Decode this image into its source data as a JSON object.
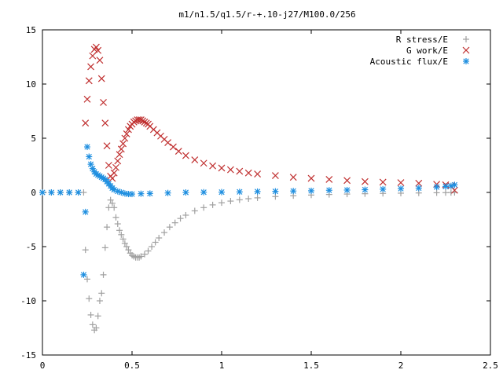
{
  "chart_data": {
    "type": "scatter",
    "title": "m1/n1.5/q1.5/r-+.10-j27/M100.0/256",
    "xlabel": "",
    "ylabel": "",
    "xlim": [
      0,
      2.5
    ],
    "ylim": [
      -15,
      15
    ],
    "x_ticks": [
      0,
      0.5,
      1,
      1.5,
      2,
      2.5
    ],
    "x_tick_labels": [
      "0",
      "0.5",
      "1",
      "1.5",
      "2",
      "2.5"
    ],
    "y_ticks": [
      -15,
      -10,
      -5,
      0,
      5,
      10,
      15
    ],
    "y_tick_labels": [
      "-15",
      "-10",
      "-5",
      "0",
      "5",
      "10",
      "15"
    ],
    "grid": false,
    "legend_position": "top-right",
    "series": [
      {
        "name": "R stress/E",
        "marker": "plus",
        "color": "#a0a0a0",
        "x": [
          0.0,
          0.05,
          0.1,
          0.15,
          0.2,
          0.23,
          0.24,
          0.25,
          0.26,
          0.27,
          0.28,
          0.29,
          0.3,
          0.31,
          0.32,
          0.33,
          0.34,
          0.35,
          0.36,
          0.37,
          0.38,
          0.39,
          0.4,
          0.41,
          0.42,
          0.43,
          0.44,
          0.45,
          0.46,
          0.47,
          0.48,
          0.49,
          0.5,
          0.51,
          0.52,
          0.53,
          0.54,
          0.55,
          0.57,
          0.59,
          0.61,
          0.63,
          0.65,
          0.68,
          0.71,
          0.74,
          0.77,
          0.8,
          0.85,
          0.9,
          0.95,
          1.0,
          1.05,
          1.1,
          1.15,
          1.2,
          1.3,
          1.4,
          1.5,
          1.6,
          1.7,
          1.8,
          1.9,
          2.0,
          2.1,
          2.2,
          2.25,
          2.28,
          2.3
        ],
        "y": [
          0.0,
          0.0,
          0.0,
          0.0,
          0.0,
          0.0,
          -5.3,
          -8.0,
          -9.8,
          -11.3,
          -12.2,
          -12.7,
          -12.5,
          -11.4,
          -10.0,
          -9.3,
          -7.6,
          -5.1,
          -3.2,
          -1.4,
          -0.7,
          -1.0,
          -1.4,
          -2.3,
          -2.9,
          -3.5,
          -3.9,
          -4.3,
          -4.7,
          -5.0,
          -5.3,
          -5.6,
          -5.8,
          -5.9,
          -6.0,
          -6.0,
          -6.0,
          -5.9,
          -5.7,
          -5.4,
          -5.0,
          -4.6,
          -4.2,
          -3.7,
          -3.2,
          -2.8,
          -2.4,
          -2.1,
          -1.7,
          -1.4,
          -1.15,
          -0.95,
          -0.8,
          -0.68,
          -0.58,
          -0.5,
          -0.38,
          -0.3,
          -0.24,
          -0.19,
          -0.15,
          -0.12,
          -0.09,
          -0.07,
          -0.05,
          -0.03,
          -0.02,
          -0.01,
          0.0
        ]
      },
      {
        "name": "G work/E",
        "marker": "cross",
        "color": "#c03030",
        "x": [
          0.24,
          0.25,
          0.26,
          0.27,
          0.28,
          0.29,
          0.3,
          0.31,
          0.32,
          0.33,
          0.34,
          0.35,
          0.36,
          0.37,
          0.38,
          0.39,
          0.4,
          0.41,
          0.42,
          0.43,
          0.44,
          0.45,
          0.46,
          0.47,
          0.48,
          0.49,
          0.5,
          0.51,
          0.52,
          0.53,
          0.54,
          0.55,
          0.56,
          0.57,
          0.58,
          0.59,
          0.6,
          0.62,
          0.64,
          0.66,
          0.68,
          0.7,
          0.73,
          0.76,
          0.8,
          0.85,
          0.9,
          0.95,
          1.0,
          1.05,
          1.1,
          1.15,
          1.2,
          1.3,
          1.4,
          1.5,
          1.6,
          1.7,
          1.8,
          1.9,
          2.0,
          2.1,
          2.2,
          2.25,
          2.28,
          2.3
        ],
        "y": [
          6.4,
          8.6,
          10.3,
          11.6,
          12.6,
          13.2,
          13.4,
          13.1,
          12.2,
          10.5,
          8.3,
          6.4,
          4.3,
          2.5,
          1.5,
          1.3,
          1.8,
          2.3,
          2.9,
          3.5,
          4.0,
          4.5,
          5.0,
          5.4,
          5.8,
          6.1,
          6.3,
          6.5,
          6.6,
          6.7,
          6.7,
          6.7,
          6.6,
          6.5,
          6.4,
          6.3,
          6.1,
          5.8,
          5.5,
          5.2,
          4.9,
          4.6,
          4.2,
          3.8,
          3.4,
          3.0,
          2.7,
          2.45,
          2.25,
          2.1,
          1.95,
          1.8,
          1.7,
          1.55,
          1.4,
          1.3,
          1.2,
          1.1,
          1.0,
          0.95,
          0.9,
          0.85,
          0.75,
          0.7,
          0.6,
          0.2
        ]
      },
      {
        "name": "Acoustic flux/E",
        "marker": "star",
        "color": "#1f8fe0",
        "x": [
          0.0,
          0.05,
          0.1,
          0.15,
          0.2,
          0.23,
          0.24,
          0.25,
          0.26,
          0.27,
          0.28,
          0.29,
          0.3,
          0.31,
          0.32,
          0.33,
          0.34,
          0.35,
          0.36,
          0.37,
          0.38,
          0.39,
          0.4,
          0.42,
          0.44,
          0.46,
          0.48,
          0.5,
          0.55,
          0.6,
          0.7,
          0.8,
          0.9,
          1.0,
          1.1,
          1.2,
          1.3,
          1.4,
          1.5,
          1.6,
          1.7,
          1.8,
          1.9,
          2.0,
          2.1,
          2.2,
          2.25,
          2.28,
          2.3
        ],
        "y": [
          0.0,
          0.0,
          0.0,
          0.0,
          0.0,
          -7.6,
          -1.8,
          4.2,
          3.3,
          2.6,
          2.2,
          1.9,
          1.7,
          1.6,
          1.5,
          1.4,
          1.3,
          1.2,
          1.0,
          0.8,
          0.6,
          0.4,
          0.25,
          0.1,
          0.0,
          -0.1,
          -0.15,
          -0.15,
          -0.12,
          -0.1,
          -0.05,
          0.0,
          0.02,
          0.03,
          0.05,
          0.08,
          0.1,
          0.13,
          0.15,
          0.2,
          0.22,
          0.25,
          0.3,
          0.35,
          0.4,
          0.5,
          0.55,
          0.6,
          0.7
        ]
      }
    ]
  }
}
